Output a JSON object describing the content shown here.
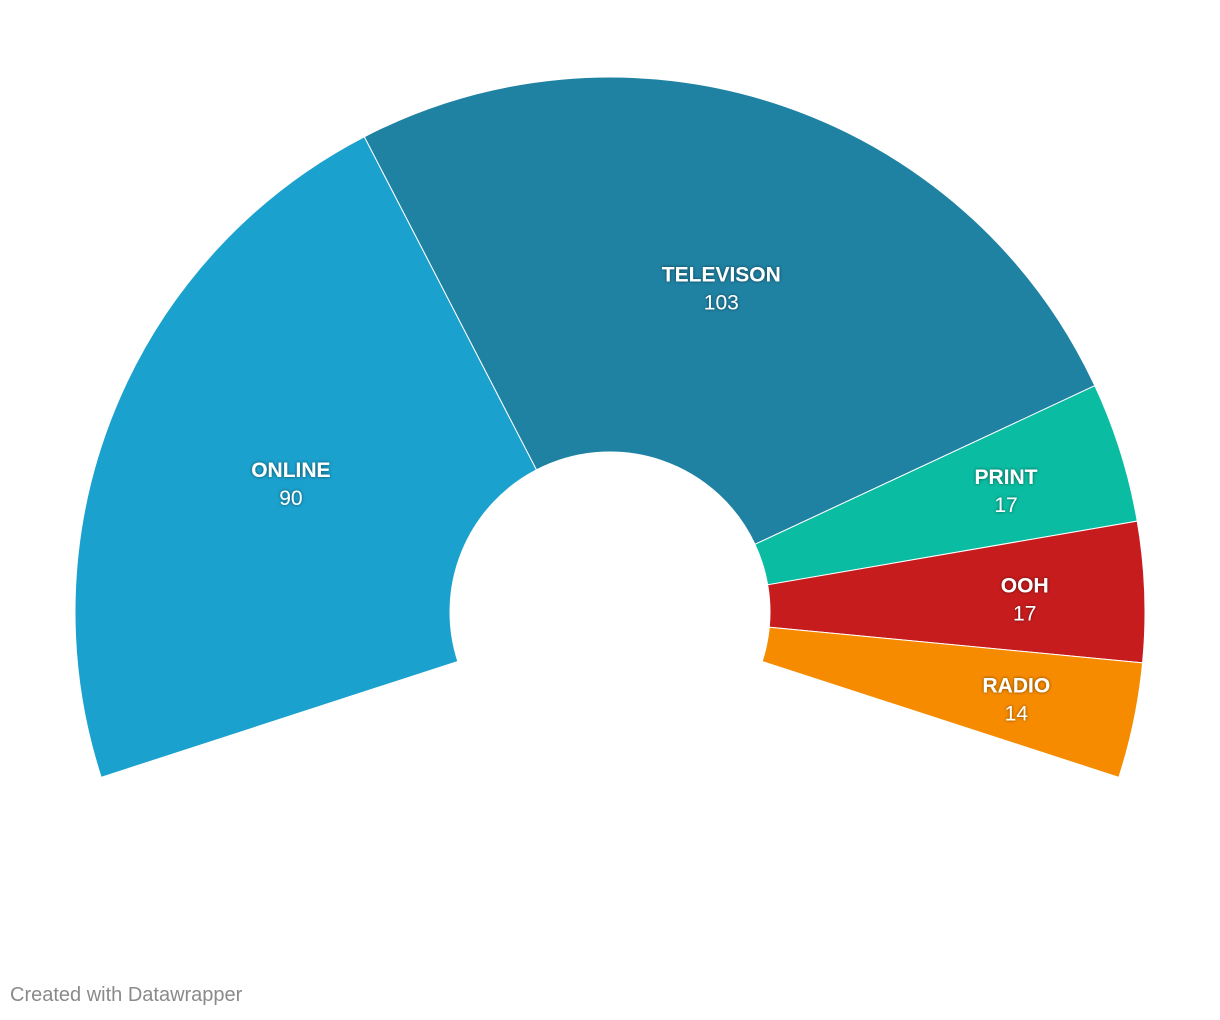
{
  "chart_data": {
    "type": "pie",
    "variant": "semi-donut",
    "title": "",
    "categories": [
      "ONLINE",
      "TELEVISON",
      "PRINT",
      "OOH",
      "RADIO"
    ],
    "values": [
      90,
      103,
      17,
      17,
      14
    ],
    "colors": [
      "#1aa1cd",
      "#1f82a3",
      "#0abca1",
      "#c71c1d",
      "#f78b00"
    ],
    "legend": "none"
  },
  "footer": {
    "credit": "Created with Datawrapper"
  }
}
